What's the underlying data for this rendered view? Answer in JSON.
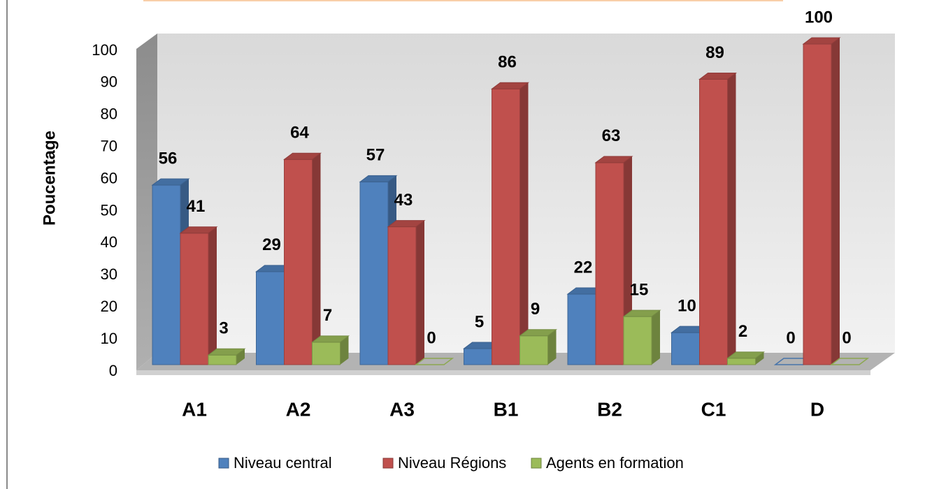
{
  "chart_data": {
    "type": "bar3d",
    "ylabel": "Poucentage",
    "categories": [
      "A1",
      "A2",
      "A3",
      "B1",
      "B2",
      "C1",
      "D"
    ],
    "series": [
      {
        "name": "Niveau central",
        "color": "#4f81bd",
        "values": [
          56,
          29,
          57,
          5,
          22,
          10,
          0
        ]
      },
      {
        "name": "Niveau Régions",
        "color": "#c0504d",
        "values": [
          41,
          64,
          43,
          86,
          63,
          89,
          100
        ]
      },
      {
        "name": "Agents en formation",
        "color": "#9bbb59",
        "values": [
          3,
          7,
          0,
          9,
          15,
          2,
          0
        ]
      }
    ],
    "ylim": [
      0,
      100
    ],
    "yticks": [
      0,
      10,
      20,
      30,
      40,
      50,
      60,
      70,
      80,
      90,
      100
    ],
    "grid": false,
    "legend": "bottom"
  }
}
